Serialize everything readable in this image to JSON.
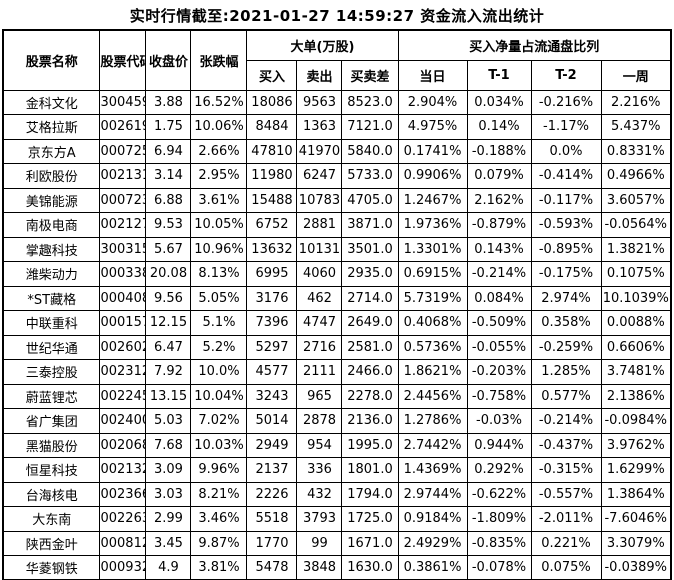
{
  "title": "实时行情截至:2021-01-27 14:59:27 资金流入流出统计",
  "colors": {
    "link_blue": "#1a5e9e",
    "text": "#000000",
    "border": "#000000",
    "background": "#ffffff"
  },
  "chart_data": {
    "type": "table",
    "title": "实时行情截至:2021-01-27 14:59:27 资金流入流出统计",
    "groups": {
      "big_orders": "大单(万股)",
      "net_buy": "买入净量占流通盘比列"
    },
    "columns": [
      "股票名称",
      "股票代码",
      "收盘价",
      "张跌幅",
      "买入",
      "卖出",
      "买卖差",
      "当日",
      "T-1",
      "T-2",
      "一周"
    ],
    "rows": [
      [
        "金科文化",
        "300459",
        "3.88",
        "16.52%",
        "18086",
        "9563",
        "8523.0",
        "2.904%",
        "0.034%",
        "-0.216%",
        "2.216%"
      ],
      [
        "艾格拉斯",
        "002619",
        "1.75",
        "10.06%",
        "8484",
        "1363",
        "7121.0",
        "4.975%",
        "0.14%",
        "-1.17%",
        "5.437%"
      ],
      [
        "京东方A",
        "000725",
        "6.94",
        "2.66%",
        "47810",
        "41970",
        "5840.0",
        "0.1741%",
        "-0.188%",
        "0.0%",
        "0.8331%"
      ],
      [
        "利欧股份",
        "002131",
        "3.14",
        "2.95%",
        "11980",
        "6247",
        "5733.0",
        "0.9906%",
        "0.079%",
        "-0.414%",
        "0.4966%"
      ],
      [
        "美锦能源",
        "000723",
        "6.88",
        "3.61%",
        "15488",
        "10783",
        "4705.0",
        "1.2467%",
        "2.162%",
        "-0.117%",
        "3.6057%"
      ],
      [
        "南极电商",
        "002127",
        "9.53",
        "10.05%",
        "6752",
        "2881",
        "3871.0",
        "1.9736%",
        "-0.879%",
        "-0.593%",
        "-0.0564%"
      ],
      [
        "掌趣科技",
        "300315",
        "5.67",
        "10.96%",
        "13632",
        "10131",
        "3501.0",
        "1.3301%",
        "0.143%",
        "-0.895%",
        "1.3821%"
      ],
      [
        "潍柴动力",
        "000338",
        "20.08",
        "8.13%",
        "6995",
        "4060",
        "2935.0",
        "0.6915%",
        "-0.214%",
        "-0.175%",
        "0.1075%"
      ],
      [
        "*ST藏格",
        "000408",
        "9.56",
        "5.05%",
        "3176",
        "462",
        "2714.0",
        "5.7319%",
        "0.084%",
        "2.974%",
        "10.1039%"
      ],
      [
        "中联重科",
        "000157",
        "12.15",
        "5.1%",
        "7396",
        "4747",
        "2649.0",
        "0.4068%",
        "-0.509%",
        "0.358%",
        "0.0088%"
      ],
      [
        "世纪华通",
        "002602",
        "6.47",
        "5.2%",
        "5297",
        "2716",
        "2581.0",
        "0.5736%",
        "-0.055%",
        "-0.259%",
        "0.6606%"
      ],
      [
        "三泰控股",
        "002312",
        "7.92",
        "10.0%",
        "4577",
        "2111",
        "2466.0",
        "1.8621%",
        "-0.203%",
        "1.285%",
        "3.7481%"
      ],
      [
        "蔚蓝锂芯",
        "002245",
        "13.15",
        "10.04%",
        "3243",
        "965",
        "2278.0",
        "2.4456%",
        "-0.758%",
        "0.577%",
        "2.1386%"
      ],
      [
        "省广集团",
        "002400",
        "5.03",
        "7.02%",
        "5014",
        "2878",
        "2136.0",
        "1.2786%",
        "-0.03%",
        "-0.214%",
        "-0.0984%"
      ],
      [
        "黑猫股份",
        "002068",
        "7.68",
        "10.03%",
        "2949",
        "954",
        "1995.0",
        "2.7442%",
        "0.944%",
        "-0.437%",
        "3.9762%"
      ],
      [
        "恒星科技",
        "002132",
        "3.09",
        "9.96%",
        "2137",
        "336",
        "1801.0",
        "1.4369%",
        "0.292%",
        "-0.315%",
        "1.6299%"
      ],
      [
        "台海核电",
        "002366",
        "3.03",
        "8.21%",
        "2226",
        "432",
        "1794.0",
        "2.9744%",
        "-0.622%",
        "-0.557%",
        "1.3864%"
      ],
      [
        "大东南",
        "002263",
        "2.99",
        "3.46%",
        "5518",
        "3793",
        "1725.0",
        "0.9184%",
        "-1.809%",
        "-2.011%",
        "-7.6046%"
      ],
      [
        "陕西金叶",
        "000812",
        "3.45",
        "9.87%",
        "1770",
        "99",
        "1671.0",
        "2.4929%",
        "-0.835%",
        "0.221%",
        "3.3079%"
      ],
      [
        "华菱钢铁",
        "000932",
        "4.9",
        "3.81%",
        "5478",
        "3848",
        "1630.0",
        "0.3861%",
        "-0.078%",
        "0.075%",
        "-0.0389%"
      ]
    ]
  }
}
